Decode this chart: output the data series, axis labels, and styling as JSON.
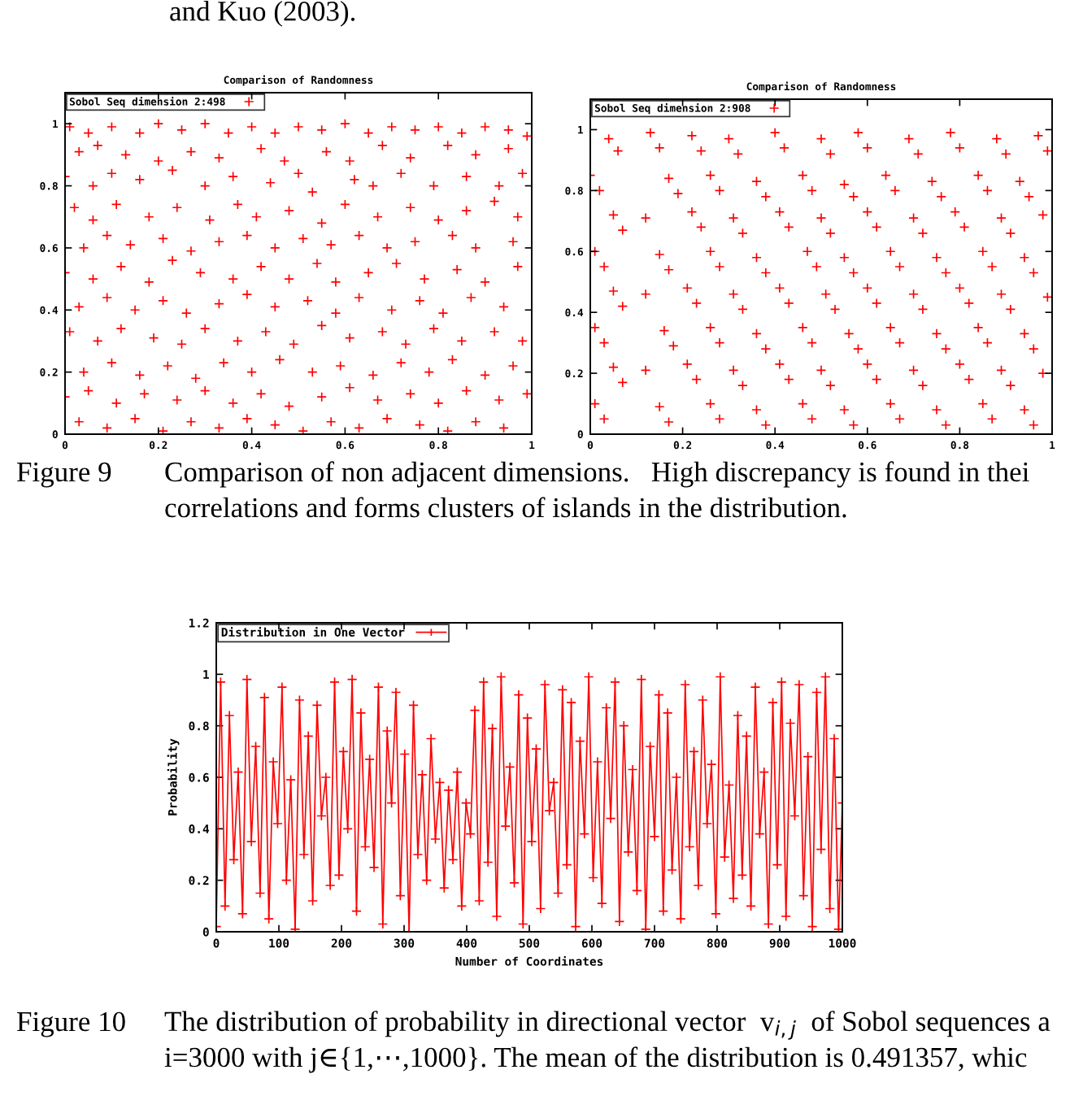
{
  "chart_data": [
    {
      "type": "scatter",
      "title": "Comparison of Randomness",
      "xlim": [
        0,
        1
      ],
      "ylim": [
        0,
        1.1
      ],
      "xticks": [
        0,
        0.2,
        0.4,
        0.6,
        0.8,
        1
      ],
      "yticks": [
        0,
        0.2,
        0.4,
        0.6,
        0.8,
        1
      ],
      "marker": "cross",
      "legend": "top left",
      "series": [
        {
          "name": "Sobol Seq dimension 2:498",
          "color": "#ff0000",
          "x": [
            0.01,
            0.05,
            0.1,
            0.16,
            0.2,
            0.25,
            0.3,
            0.35,
            0.4,
            0.45,
            0.5,
            0.55,
            0.6,
            0.65,
            0.7,
            0.75,
            0.8,
            0.85,
            0.9,
            0.95,
            0.99,
            0.03,
            0.07,
            0.13,
            0.2,
            0.27,
            0.33,
            0.42,
            0.47,
            0.56,
            0.61,
            0.68,
            0.74,
            0.82,
            0.88,
            0.95,
            0.0,
            0.06,
            0.1,
            0.16,
            0.23,
            0.3,
            0.36,
            0.44,
            0.5,
            0.53,
            0.62,
            0.66,
            0.72,
            0.79,
            0.86,
            0.93,
            0.98,
            0.02,
            0.06,
            0.11,
            0.18,
            0.24,
            0.31,
            0.37,
            0.41,
            0.48,
            0.55,
            0.6,
            0.67,
            0.74,
            0.8,
            0.86,
            0.92,
            0.97,
            0.04,
            0.09,
            0.14,
            0.21,
            0.27,
            0.33,
            0.39,
            0.45,
            0.51,
            0.57,
            0.63,
            0.69,
            0.75,
            0.83,
            0.88,
            0.96,
            0.0,
            0.06,
            0.12,
            0.18,
            0.23,
            0.29,
            0.36,
            0.42,
            0.48,
            0.54,
            0.58,
            0.65,
            0.71,
            0.77,
            0.84,
            0.9,
            0.97,
            0.03,
            0.09,
            0.15,
            0.21,
            0.26,
            0.33,
            0.39,
            0.45,
            0.52,
            0.58,
            0.63,
            0.7,
            0.76,
            0.81,
            0.87,
            0.94,
            0.01,
            0.07,
            0.12,
            0.19,
            0.25,
            0.3,
            0.37,
            0.43,
            0.49,
            0.55,
            0.61,
            0.68,
            0.73,
            0.79,
            0.85,
            0.92,
            0.98,
            0.04,
            0.1,
            0.16,
            0.22,
            0.28,
            0.34,
            0.4,
            0.46,
            0.53,
            0.59,
            0.66,
            0.72,
            0.78,
            0.83,
            0.9,
            0.96,
            0.0,
            0.05,
            0.11,
            0.17,
            0.24,
            0.3,
            0.36,
            0.42,
            0.48,
            0.55,
            0.61,
            0.67,
            0.74,
            0.8,
            0.86,
            0.93,
            0.99,
            0.03,
            0.09,
            0.15,
            0.21,
            0.27,
            0.33,
            0.39,
            0.45,
            0.51,
            0.57,
            0.63,
            0.69,
            0.76,
            0.82,
            0.88,
            0.94
          ],
          "values": [
            0.99,
            0.97,
            0.99,
            0.97,
            1.0,
            0.98,
            1.0,
            0.97,
            0.99,
            0.97,
            0.99,
            0.98,
            1.0,
            0.97,
            0.99,
            0.98,
            0.99,
            0.97,
            0.99,
            0.98,
            0.96,
            0.91,
            0.93,
            0.9,
            0.88,
            0.91,
            0.89,
            0.92,
            0.88,
            0.91,
            0.88,
            0.93,
            0.89,
            0.93,
            0.9,
            0.92,
            0.83,
            0.8,
            0.84,
            0.82,
            0.85,
            0.8,
            0.83,
            0.81,
            0.84,
            0.78,
            0.82,
            0.8,
            0.84,
            0.8,
            0.83,
            0.8,
            0.84,
            0.73,
            0.69,
            0.74,
            0.7,
            0.73,
            0.69,
            0.74,
            0.7,
            0.72,
            0.68,
            0.74,
            0.7,
            0.73,
            0.69,
            0.72,
            0.75,
            0.7,
            0.6,
            0.64,
            0.61,
            0.63,
            0.59,
            0.62,
            0.64,
            0.6,
            0.63,
            0.61,
            0.64,
            0.6,
            0.62,
            0.64,
            0.6,
            0.62,
            0.52,
            0.5,
            0.54,
            0.49,
            0.56,
            0.52,
            0.5,
            0.54,
            0.5,
            0.55,
            0.49,
            0.52,
            0.55,
            0.5,
            0.53,
            0.49,
            0.54,
            0.41,
            0.44,
            0.4,
            0.43,
            0.39,
            0.42,
            0.45,
            0.41,
            0.43,
            0.39,
            0.44,
            0.4,
            0.43,
            0.39,
            0.44,
            0.41,
            0.33,
            0.3,
            0.34,
            0.31,
            0.29,
            0.34,
            0.3,
            0.33,
            0.29,
            0.35,
            0.31,
            0.33,
            0.29,
            0.34,
            0.3,
            0.33,
            0.3,
            0.2,
            0.23,
            0.19,
            0.22,
            0.18,
            0.23,
            0.2,
            0.24,
            0.2,
            0.22,
            0.19,
            0.23,
            0.2,
            0.24,
            0.19,
            0.22,
            0.12,
            0.14,
            0.1,
            0.13,
            0.11,
            0.14,
            0.1,
            0.13,
            0.09,
            0.12,
            0.15,
            0.11,
            0.13,
            0.1,
            0.14,
            0.11,
            0.13,
            0.04,
            0.02,
            0.05,
            0.01,
            0.04,
            0.02,
            0.05,
            0.03,
            0.01,
            0.04,
            0.02,
            0.05,
            0.03,
            0.01,
            0.04,
            0.02
          ]
        }
      ],
      "annotations": [
        "and Kuo (2003).",
        "Figure 9",
        "Comparison of non adjacent dimensions.   High discrepancy is found in thei",
        "correlations and forms clusters of islands in the distribution."
      ]
    },
    {
      "type": "scatter",
      "title": "Comparison of Randomness",
      "xlim": [
        0,
        1
      ],
      "ylim": [
        0,
        1.1
      ],
      "xticks": [
        0,
        0.2,
        0.4,
        0.6,
        0.8,
        1
      ],
      "yticks": [
        0,
        0.2,
        0.4,
        0.6,
        0.8,
        1
      ],
      "marker": "cross",
      "legend": "top left",
      "series": [
        {
          "name": "Sobol Seq dimension 2:908",
          "color": "#ff0000",
          "x": [
            0.04,
            0.06,
            0.13,
            0.15,
            0.22,
            0.24,
            0.3,
            0.32,
            0.4,
            0.42,
            0.5,
            0.52,
            0.58,
            0.6,
            0.69,
            0.71,
            0.78,
            0.8,
            0.88,
            0.9,
            0.97,
            0.99,
            0.0,
            0.02,
            0.17,
            0.19,
            0.26,
            0.28,
            0.36,
            0.38,
            0.46,
            0.48,
            0.55,
            0.57,
            0.64,
            0.66,
            0.74,
            0.76,
            0.84,
            0.86,
            0.93,
            0.95,
            0.05,
            0.07,
            0.12,
            0.22,
            0.24,
            0.31,
            0.33,
            0.41,
            0.43,
            0.5,
            0.52,
            0.6,
            0.62,
            0.7,
            0.72,
            0.79,
            0.81,
            0.89,
            0.91,
            0.98,
            0.01,
            0.03,
            0.15,
            0.17,
            0.26,
            0.28,
            0.36,
            0.38,
            0.47,
            0.49,
            0.55,
            0.57,
            0.65,
            0.67,
            0.75,
            0.77,
            0.85,
            0.87,
            0.94,
            0.96,
            0.05,
            0.07,
            0.12,
            0.21,
            0.23,
            0.31,
            0.33,
            0.41,
            0.43,
            0.51,
            0.53,
            0.6,
            0.62,
            0.7,
            0.72,
            0.8,
            0.82,
            0.89,
            0.91,
            0.99,
            0.01,
            0.03,
            0.16,
            0.18,
            0.26,
            0.28,
            0.36,
            0.38,
            0.46,
            0.48,
            0.56,
            0.58,
            0.65,
            0.67,
            0.75,
            0.77,
            0.84,
            0.86,
            0.94,
            0.96,
            0.05,
            0.07,
            0.12,
            0.21,
            0.23,
            0.31,
            0.33,
            0.41,
            0.43,
            0.5,
            0.52,
            0.6,
            0.62,
            0.7,
            0.72,
            0.8,
            0.82,
            0.89,
            0.91,
            0.98,
            0.01,
            0.03,
            0.15,
            0.17,
            0.26,
            0.28,
            0.36,
            0.38,
            0.46,
            0.48,
            0.55,
            0.57,
            0.65,
            0.67,
            0.75,
            0.77,
            0.85,
            0.87,
            0.94,
            0.96
          ],
          "values": [
            0.97,
            0.93,
            0.99,
            0.94,
            0.98,
            0.93,
            0.97,
            0.92,
            0.99,
            0.94,
            0.97,
            0.92,
            0.99,
            0.94,
            0.97,
            0.92,
            0.99,
            0.94,
            0.97,
            0.92,
            0.98,
            0.93,
            0.85,
            0.8,
            0.84,
            0.79,
            0.85,
            0.8,
            0.83,
            0.78,
            0.85,
            0.8,
            0.82,
            0.78,
            0.85,
            0.8,
            0.83,
            0.78,
            0.85,
            0.8,
            0.83,
            0.78,
            0.72,
            0.67,
            0.71,
            0.73,
            0.68,
            0.71,
            0.66,
            0.73,
            0.68,
            0.71,
            0.66,
            0.73,
            0.68,
            0.71,
            0.66,
            0.73,
            0.68,
            0.71,
            0.66,
            0.72,
            0.6,
            0.55,
            0.59,
            0.54,
            0.6,
            0.55,
            0.58,
            0.53,
            0.6,
            0.55,
            0.58,
            0.53,
            0.6,
            0.55,
            0.58,
            0.53,
            0.6,
            0.55,
            0.58,
            0.53,
            0.47,
            0.42,
            0.46,
            0.48,
            0.43,
            0.46,
            0.41,
            0.48,
            0.43,
            0.46,
            0.41,
            0.48,
            0.43,
            0.46,
            0.41,
            0.48,
            0.43,
            0.46,
            0.41,
            0.45,
            0.35,
            0.3,
            0.34,
            0.29,
            0.35,
            0.3,
            0.33,
            0.28,
            0.35,
            0.3,
            0.33,
            0.28,
            0.35,
            0.3,
            0.33,
            0.28,
            0.35,
            0.3,
            0.33,
            0.28,
            0.22,
            0.17,
            0.21,
            0.23,
            0.18,
            0.21,
            0.16,
            0.23,
            0.18,
            0.21,
            0.16,
            0.23,
            0.18,
            0.21,
            0.16,
            0.23,
            0.18,
            0.21,
            0.16,
            0.2,
            0.1,
            0.05,
            0.09,
            0.04,
            0.1,
            0.05,
            0.08,
            0.03,
            0.1,
            0.05,
            0.08,
            0.03,
            0.1,
            0.05,
            0.08,
            0.03,
            0.1,
            0.05,
            0.08,
            0.03
          ]
        }
      ]
    },
    {
      "type": "line",
      "xlabel": "Number of Coordinates",
      "ylabel": "Probability",
      "xlim": [
        0,
        1000
      ],
      "ylim": [
        0,
        1.2
      ],
      "xticks": [
        0,
        100,
        200,
        300,
        400,
        500,
        600,
        700,
        800,
        900,
        1000
      ],
      "yticks": [
        0,
        0.2,
        0.4,
        0.6,
        0.8,
        1,
        1.2
      ],
      "marker": "cross",
      "line_style": "solid",
      "legend": "top left",
      "series": [
        {
          "name": "Distribution in One Vector",
          "color": "#ff0000",
          "x": [
            0,
            7,
            14,
            21,
            28,
            35,
            42,
            49,
            56,
            63,
            70,
            77,
            84,
            91,
            98,
            105,
            112,
            119,
            126,
            133,
            140,
            147,
            154,
            161,
            168,
            175,
            182,
            189,
            196,
            203,
            210,
            217,
            224,
            231,
            238,
            245,
            252,
            259,
            266,
            273,
            280,
            287,
            294,
            301,
            308,
            315,
            322,
            329,
            336,
            343,
            350,
            357,
            364,
            371,
            378,
            385,
            392,
            399,
            406,
            413,
            420,
            427,
            434,
            441,
            448,
            455,
            462,
            469,
            476,
            483,
            490,
            497,
            504,
            511,
            518,
            525,
            532,
            539,
            546,
            553,
            560,
            567,
            574,
            581,
            588,
            595,
            602,
            609,
            616,
            623,
            630,
            637,
            644,
            651,
            658,
            665,
            672,
            679,
            686,
            693,
            700,
            707,
            714,
            721,
            728,
            735,
            742,
            749,
            756,
            763,
            770,
            777,
            784,
            791,
            798,
            805,
            812,
            819,
            826,
            833,
            840,
            847,
            854,
            861,
            868,
            875,
            882,
            889,
            896,
            903,
            910,
            917,
            924,
            931,
            938,
            945,
            952,
            959,
            966,
            973,
            980,
            987,
            994,
            1000
          ],
          "values": [
            0.02,
            0.97,
            0.1,
            0.84,
            0.28,
            0.62,
            0.07,
            0.98,
            0.35,
            0.72,
            0.15,
            0.91,
            0.05,
            0.66,
            0.42,
            0.95,
            0.2,
            0.59,
            0.01,
            0.9,
            0.3,
            0.76,
            0.12,
            0.88,
            0.45,
            0.6,
            0.18,
            0.97,
            0.22,
            0.7,
            0.4,
            0.98,
            0.08,
            0.85,
            0.33,
            0.67,
            0.25,
            0.95,
            0.03,
            0.78,
            0.5,
            0.93,
            0.14,
            0.69,
            0.0,
            0.88,
            0.3,
            0.61,
            0.2,
            0.75,
            0.36,
            0.58,
            0.17,
            0.55,
            0.28,
            0.62,
            0.1,
            0.5,
            0.38,
            0.86,
            0.12,
            0.97,
            0.27,
            0.79,
            0.06,
            0.99,
            0.41,
            0.64,
            0.19,
            0.92,
            0.03,
            0.83,
            0.35,
            0.71,
            0.09,
            0.96,
            0.47,
            0.58,
            0.15,
            0.94,
            0.26,
            0.89,
            0.02,
            0.74,
            0.38,
            0.99,
            0.21,
            0.66,
            0.11,
            0.87,
            0.44,
            0.97,
            0.04,
            0.8,
            0.31,
            0.63,
            0.16,
            0.98,
            0.01,
            0.72,
            0.37,
            0.92,
            0.08,
            0.85,
            0.24,
            0.6,
            0.05,
            0.96,
            0.33,
            0.7,
            0.18,
            0.9,
            0.42,
            0.65,
            0.07,
            0.99,
            0.29,
            0.57,
            0.13,
            0.84,
            0.22,
            0.76,
            0.1,
            0.95,
            0.38,
            0.62,
            0.03,
            0.89,
            0.26,
            0.97,
            0.06,
            0.81,
            0.45,
            0.96,
            0.14,
            0.68,
            0.02,
            0.93,
            0.32,
            0.99,
            0.09,
            0.75,
            0.01,
            0.5
          ]
        }
      ],
      "annotations": [
        "Figure 10",
        "The distribution of probability in directional vector  v$_{i,j}$  of Sobol sequences a",
        "i=3000 with j∈{1,⋯,1000}. The mean of the distribution is 0.491357, whic"
      ]
    }
  ]
}
